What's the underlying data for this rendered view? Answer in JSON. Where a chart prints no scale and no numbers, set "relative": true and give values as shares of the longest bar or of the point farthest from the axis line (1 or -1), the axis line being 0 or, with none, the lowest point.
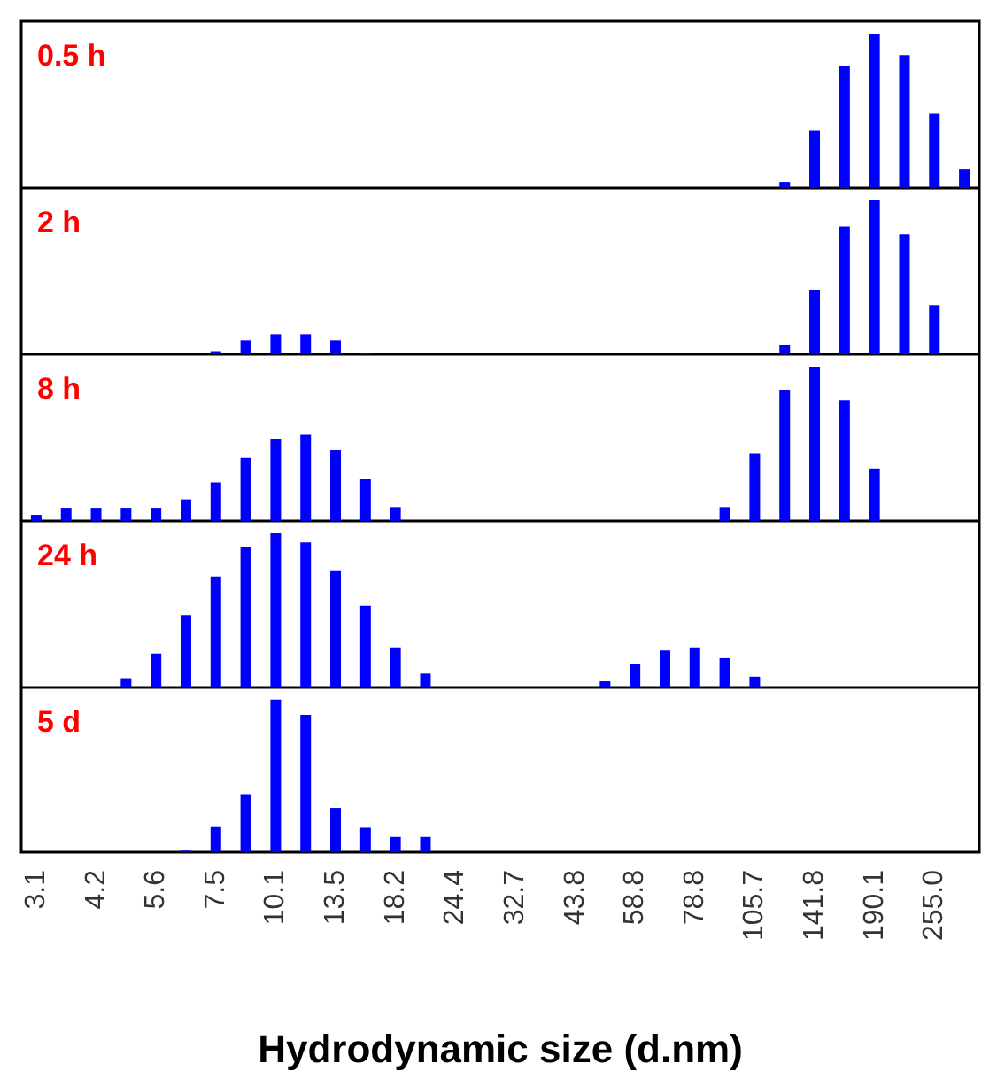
{
  "chart_data": [
    {
      "type": "bar",
      "title": "0.5 h",
      "relative": true,
      "tick_labels": false,
      "categories": [
        "3.1",
        null,
        "4.2",
        null,
        "5.6",
        null,
        "7.5",
        null,
        "10.1",
        null,
        "13.5",
        null,
        "18.2",
        null,
        "24.4",
        null,
        "32.7",
        null,
        "43.8",
        null,
        "58.8",
        null,
        "78.8",
        null,
        "105.7",
        null,
        "141.8",
        null,
        "190.1",
        null,
        "255.0",
        null
      ],
      "series": [
        {
          "color": "#0000ff",
          "values": [
            null,
            null,
            null,
            null,
            null,
            null,
            null,
            null,
            null,
            null,
            null,
            null,
            null,
            null,
            null,
            null,
            null,
            null,
            null,
            null,
            null,
            null,
            null,
            null,
            null,
            0.034,
            0.37,
            0.79,
            1.0,
            0.86,
            0.48,
            0.12
          ]
        }
      ]
    },
    {
      "type": "bar",
      "title": "2 h",
      "relative": true,
      "tick_labels": false,
      "categories": [
        "3.1",
        null,
        "4.2",
        null,
        "5.6",
        null,
        "7.5",
        null,
        "10.1",
        null,
        "13.5",
        null,
        "18.2",
        null,
        "24.4",
        null,
        "32.7",
        null,
        "43.8",
        null,
        "58.8",
        null,
        "78.8",
        null,
        "105.7",
        null,
        "141.8",
        null,
        "190.1",
        null,
        "255.0",
        null
      ],
      "series": [
        {
          "color": "#0000ff",
          "values": [
            null,
            null,
            null,
            null,
            null,
            null,
            0.02,
            0.09,
            0.13,
            0.13,
            0.09,
            0.01,
            null,
            null,
            null,
            null,
            null,
            null,
            null,
            null,
            null,
            null,
            null,
            null,
            null,
            0.06,
            0.42,
            0.83,
            1.0,
            0.78,
            0.32,
            null
          ]
        }
      ]
    },
    {
      "type": "bar",
      "title": "8 h",
      "relative": true,
      "tick_labels": false,
      "categories": [
        "3.1",
        null,
        "4.2",
        null,
        "5.6",
        null,
        "7.5",
        null,
        "10.1",
        null,
        "13.5",
        null,
        "18.2",
        null,
        "24.4",
        null,
        "32.7",
        null,
        "43.8",
        null,
        "58.8",
        null,
        "78.8",
        null,
        "105.7",
        null,
        "141.8",
        null,
        "190.1",
        null,
        "255.0",
        null
      ],
      "series": [
        {
          "color": "#0000ff",
          "values": [
            0.04,
            0.08,
            0.08,
            0.08,
            0.08,
            0.14,
            0.25,
            0.41,
            0.53,
            0.56,
            0.46,
            0.27,
            0.09,
            null,
            null,
            null,
            null,
            null,
            null,
            null,
            null,
            null,
            null,
            0.09,
            0.44,
            0.85,
            1.0,
            0.78,
            0.34,
            null,
            null,
            null
          ]
        }
      ]
    },
    {
      "type": "bar",
      "title": "24 h",
      "relative": true,
      "tick_labels": false,
      "categories": [
        "3.1",
        null,
        "4.2",
        null,
        "5.6",
        null,
        "7.5",
        null,
        "10.1",
        null,
        "13.5",
        null,
        "18.2",
        null,
        "24.4",
        null,
        "32.7",
        null,
        "43.8",
        null,
        "58.8",
        null,
        "78.8",
        null,
        "105.7",
        null,
        "141.8",
        null,
        "190.1",
        null,
        "255.0",
        null
      ],
      "series": [
        {
          "color": "#0000ff",
          "values": [
            null,
            null,
            null,
            0.06,
            0.22,
            0.47,
            0.72,
            0.91,
            1.0,
            0.94,
            0.76,
            0.53,
            0.26,
            0.09,
            null,
            null,
            null,
            null,
            null,
            0.04,
            0.15,
            0.24,
            0.26,
            0.19,
            0.07,
            null,
            null,
            null,
            null,
            null,
            null,
            null
          ]
        }
      ]
    },
    {
      "type": "bar",
      "title": "5 d",
      "xlabel": "Hydrodynamic size (d.nm)",
      "relative": true,
      "tick_labels": "x",
      "categories": [
        "3.1",
        null,
        "4.2",
        null,
        "5.6",
        null,
        "7.5",
        null,
        "10.1",
        null,
        "13.5",
        null,
        "18.2",
        null,
        "24.4",
        null,
        "32.7",
        null,
        "43.8",
        null,
        "58.8",
        null,
        "78.8",
        null,
        "105.7",
        null,
        "141.8",
        null,
        "190.1",
        null,
        "255.0",
        null
      ],
      "series": [
        {
          "color": "#0000ff",
          "values": [
            null,
            null,
            null,
            null,
            null,
            0.01,
            0.17,
            0.38,
            1.0,
            0.9,
            0.29,
            0.16,
            0.1,
            0.1,
            null,
            null,
            null,
            null,
            null,
            null,
            null,
            null,
            null,
            null,
            null,
            null,
            null,
            null,
            null,
            null,
            null,
            null
          ]
        }
      ]
    }
  ]
}
